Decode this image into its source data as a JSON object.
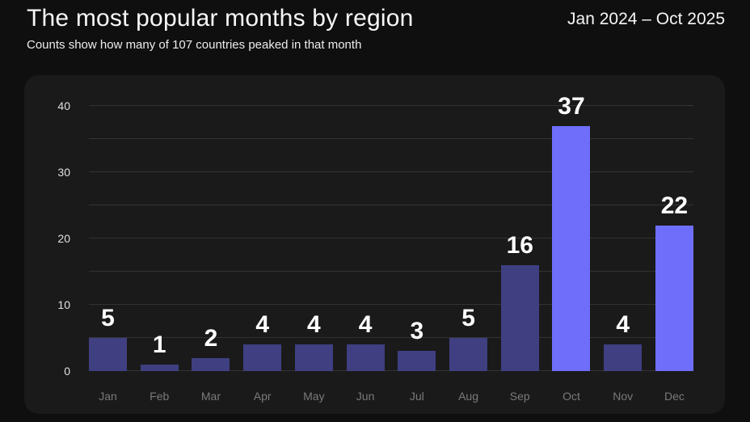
{
  "header": {
    "title": "The most popular months by region",
    "subtitle": "Counts show how many of 107 countries peaked in that month",
    "date_range": "Jan 2024 – Oct 2025"
  },
  "colors": {
    "page_bg": "#0f0f0f",
    "panel_bg": "#1a1a1a",
    "bar_default": "#3f3f82",
    "bar_highlight": "#6f6efa",
    "grid_line": "rgba(255,255,255,0.11)",
    "value_label": "#ffffff",
    "tick_label": "#e0e0e0",
    "month_label": "#7a7a7a"
  },
  "chart_data": {
    "type": "bar",
    "title": "The most popular months by region",
    "subtitle": "Counts show how many of 107 countries peaked in that month",
    "annotation_range": "Jan 2024 – Oct 2025",
    "categories": [
      "Jan",
      "Feb",
      "Mar",
      "Apr",
      "May",
      "Jun",
      "Jul",
      "Aug",
      "Sep",
      "Oct",
      "Nov",
      "Dec"
    ],
    "values": [
      5,
      1,
      2,
      4,
      4,
      4,
      3,
      5,
      16,
      37,
      4,
      22
    ],
    "highlighted_categories": [
      "Oct",
      "Dec"
    ],
    "xlabel": "",
    "ylabel": "",
    "ylim": [
      0,
      40
    ],
    "y_ticks": [
      0,
      10,
      20,
      30,
      40
    ],
    "gridline_step": 5,
    "grid": true,
    "legend": false,
    "data_labels": true
  }
}
